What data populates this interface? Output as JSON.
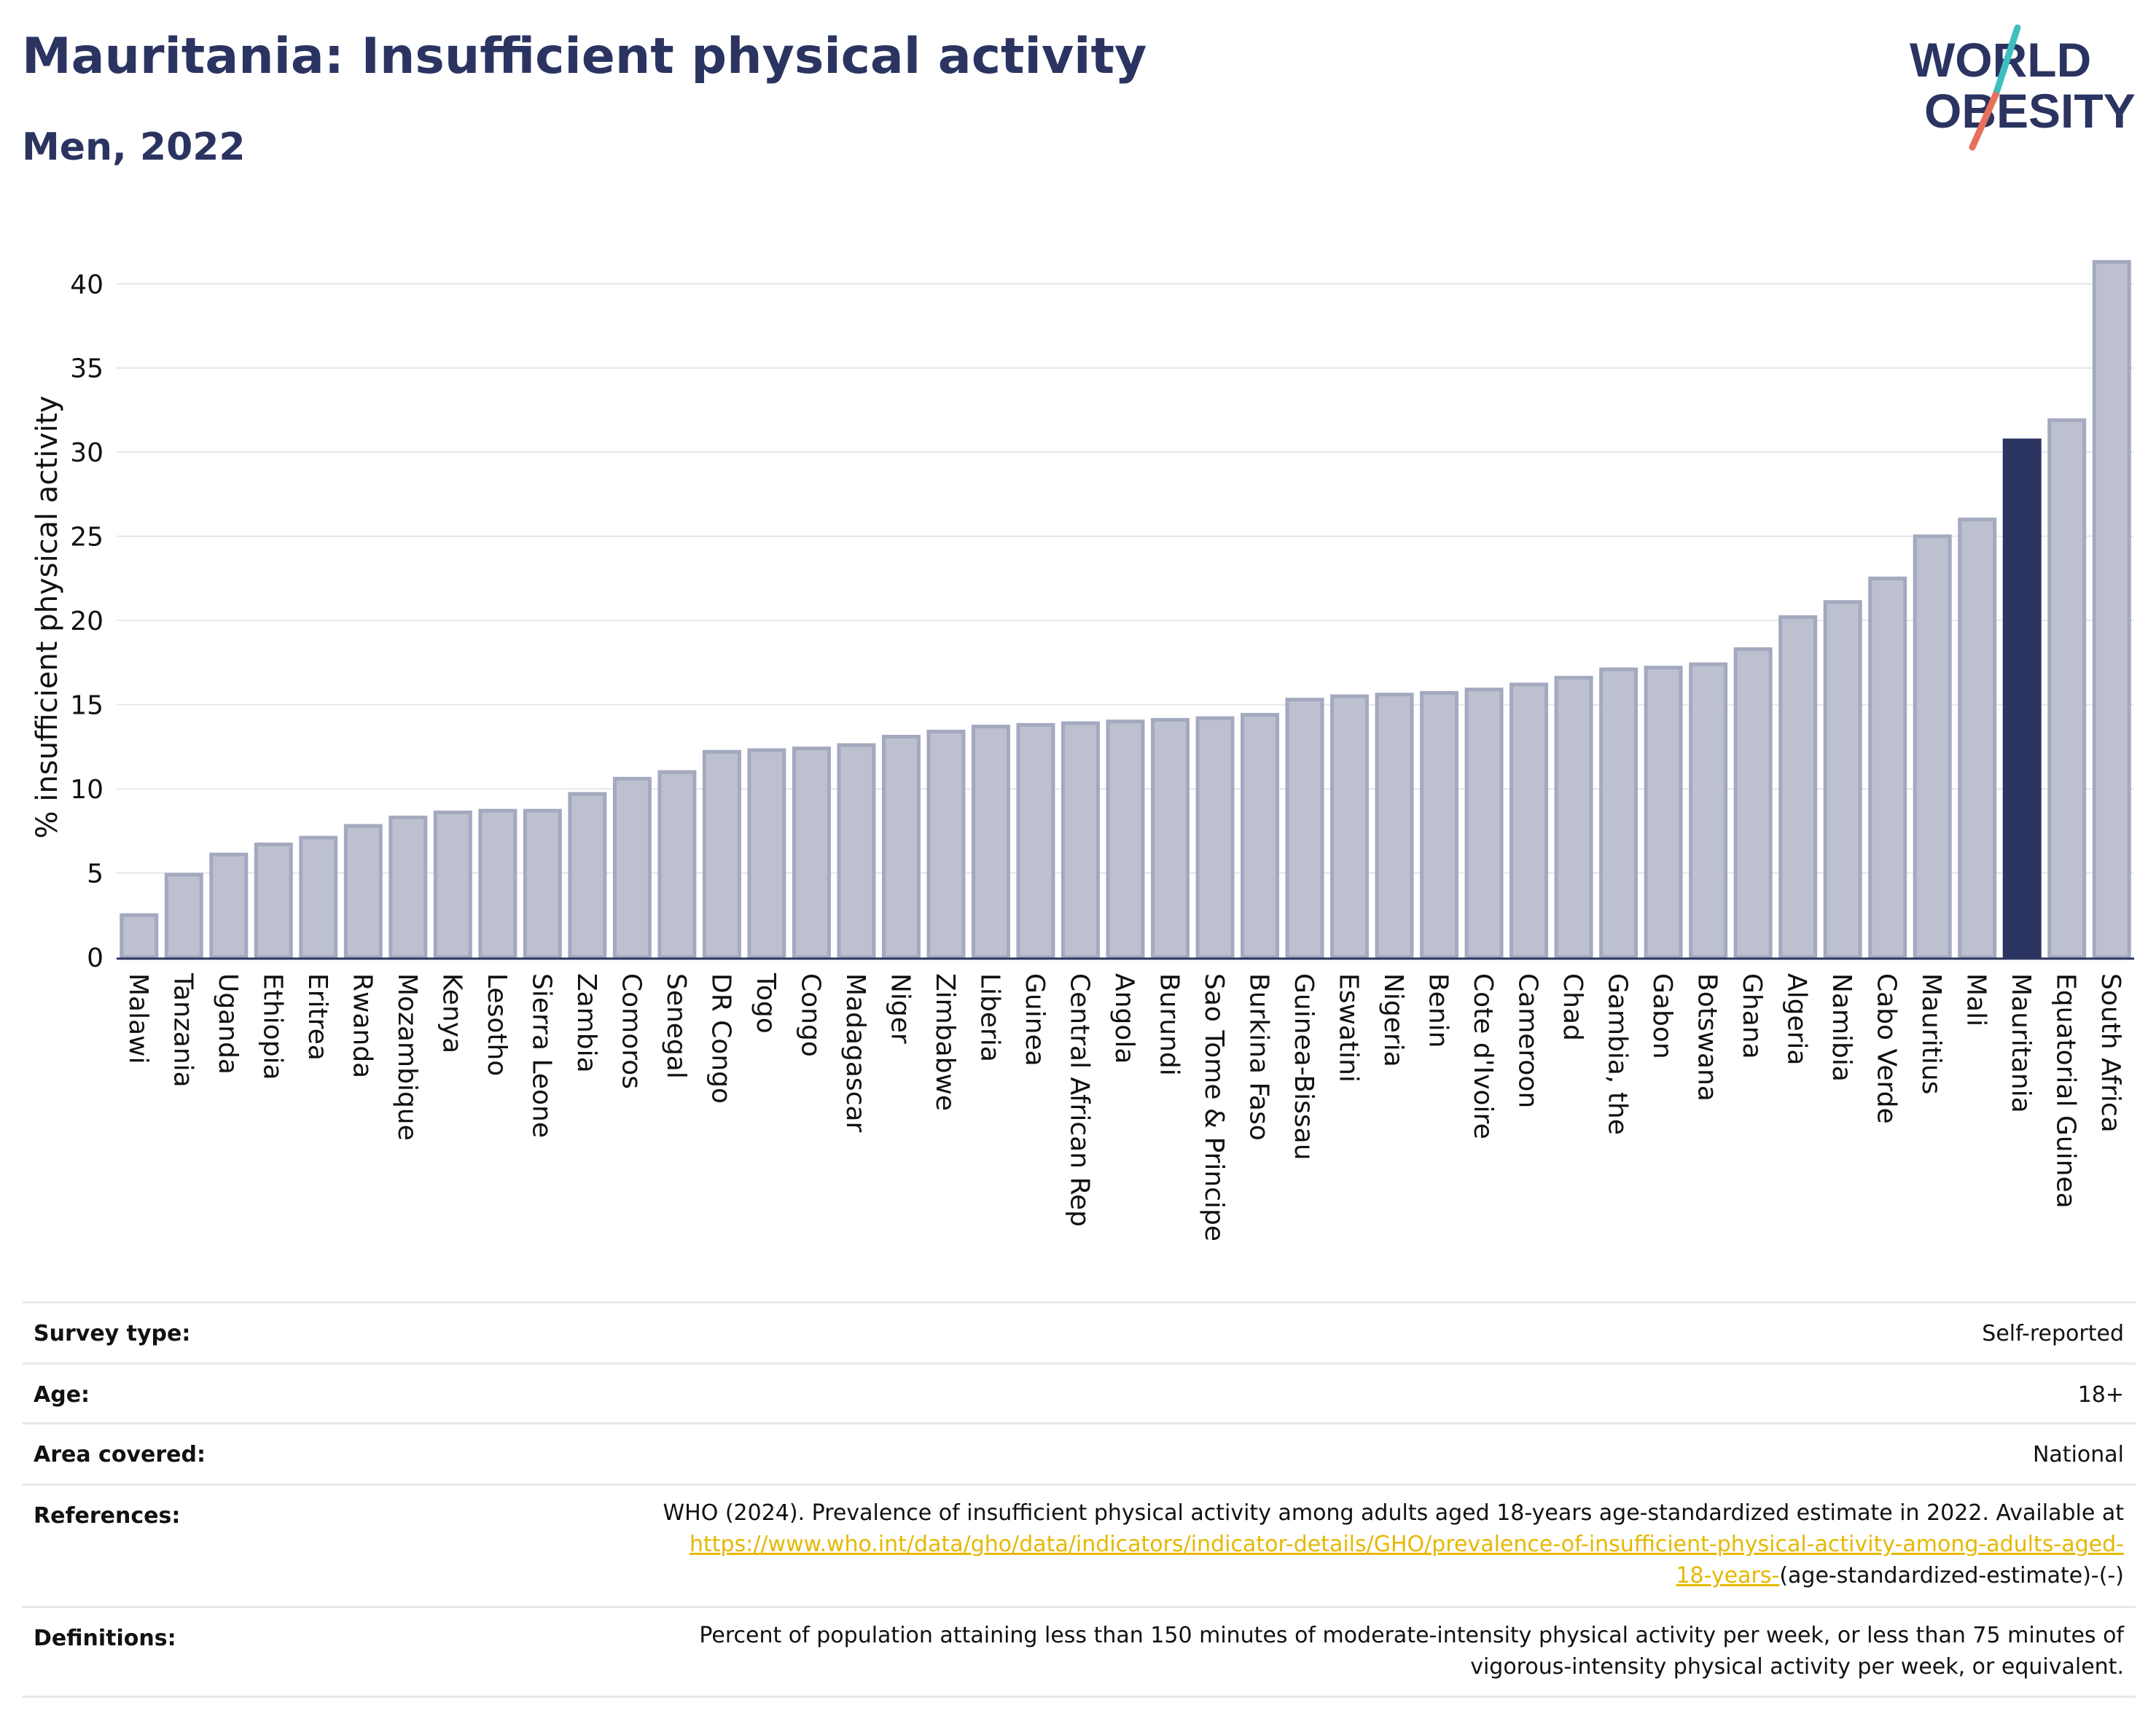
{
  "header": {
    "title": "Mauritania: Insufficient physical activity",
    "subtitle": "Men, 2022"
  },
  "logo": {
    "line1": "WORLD",
    "line2": "OBESITY",
    "colors": {
      "text": "#2b3461",
      "slash_teal": "#3dbfc0",
      "slash_coral": "#e8705a"
    }
  },
  "colors": {
    "bar_fill": "#bcc0cf",
    "bar_stroke": "#a3a9bf",
    "highlight": "#2b3461",
    "grid": "#e6e6ea",
    "axis": "#2b3461"
  },
  "chart_data": {
    "type": "bar",
    "title": "Mauritania: Insufficient physical activity",
    "subtitle": "Men, 2022",
    "xlabel": "",
    "ylabel": "% insufficient physical activity",
    "ylim": [
      0,
      43
    ],
    "yticks": [
      0,
      5,
      10,
      15,
      20,
      25,
      30,
      35,
      40
    ],
    "grid": true,
    "highlight": "Mauritania",
    "categories": [
      "Malawi",
      "Tanzania",
      "Uganda",
      "Ethiopia",
      "Eritrea",
      "Rwanda",
      "Mozambique",
      "Kenya",
      "Lesotho",
      "Sierra Leone",
      "Zambia",
      "Comoros",
      "Senegal",
      "DR Congo",
      "Togo",
      "Congo",
      "Madagascar",
      "Niger",
      "Zimbabwe",
      "Liberia",
      "Guinea",
      "Central African Rep",
      "Angola",
      "Burundi",
      "Sao Tome & Principe",
      "Burkina Faso",
      "Guinea-Bissau",
      "Eswatini",
      "Nigeria",
      "Benin",
      "Cote d'Ivoire",
      "Cameroon",
      "Chad",
      "Gambia, the",
      "Gabon",
      "Botswana",
      "Ghana",
      "Algeria",
      "Namibia",
      "Cabo Verde",
      "Mauritius",
      "Mali",
      "Mauritania",
      "Equatorial Guinea",
      "South Africa"
    ],
    "values": [
      2.5,
      4.9,
      6.1,
      6.7,
      7.1,
      7.8,
      8.3,
      8.6,
      8.7,
      8.7,
      9.7,
      10.6,
      11.0,
      12.2,
      12.3,
      12.4,
      12.6,
      13.1,
      13.4,
      13.7,
      13.8,
      13.9,
      14.0,
      14.1,
      14.2,
      14.4,
      15.3,
      15.5,
      15.6,
      15.7,
      15.9,
      16.2,
      16.6,
      17.1,
      17.2,
      17.4,
      18.3,
      20.2,
      21.1,
      22.5,
      25.0,
      26.0,
      30.7,
      31.9,
      41.3
    ]
  },
  "info": {
    "survey_type": {
      "label": "Survey type:",
      "value": "Self-reported"
    },
    "age": {
      "label": "Age:",
      "value": "18+"
    },
    "area": {
      "label": "Area covered:",
      "value": "National"
    },
    "references": {
      "label": "References:",
      "text": "WHO (2024). Prevalence of insufficient physical activity among adults aged 18-years age-standardized estimate in 2022. Available at",
      "link_line1": "https://www.who.int/data/gho/data/indicators/indicator-details/GHO/prevalence-of-insufficient-physical-activity-among-adults-aged-",
      "link_line2": "18-years-",
      "suffix": "(age-standardized-estimate)-(-)"
    },
    "definitions": {
      "label": "Definitions:",
      "line1": "Percent of population attaining less than 150 minutes of moderate-intensity physical activity per week, or less than 75 minutes of",
      "line2": "vigorous-intensity physical activity per week, or equivalent."
    }
  }
}
